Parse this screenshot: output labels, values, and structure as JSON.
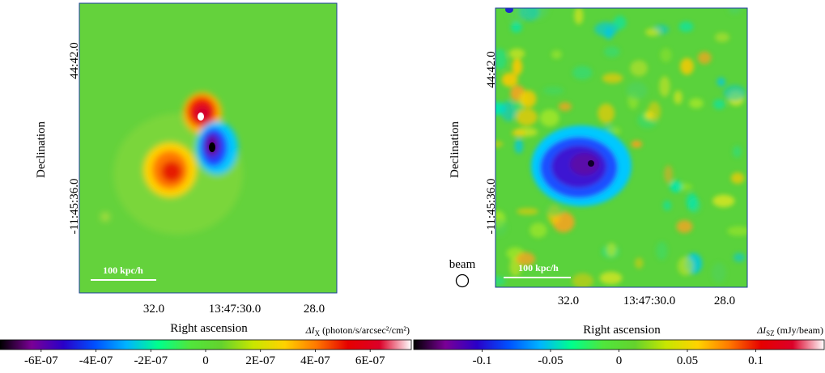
{
  "chart_data": [
    {
      "type": "heatmap",
      "panel": "left",
      "xlabel": "Right ascension",
      "ylabel": "Declination",
      "x_ticks": [
        "32.0",
        "13:47:30.0",
        "28.0"
      ],
      "y_ticks": [
        "44:42.0",
        "-11:45:36.0"
      ],
      "scalebar": "100 kpc/h",
      "colorbar": {
        "label_prefix": "ΔI",
        "label_sub": "X",
        "label_suffix": " (photon/s/arcsec²/cm²)",
        "ticks": [
          "-6E-07",
          "-4E-07",
          "-2E-07",
          "0",
          "2E-07",
          "4E-07",
          "6E-07"
        ],
        "range": [
          -7.5e-07,
          7.5e-07
        ]
      },
      "features": [
        {
          "sign": "positive",
          "level": 0.95,
          "desc": "lobe upper"
        },
        {
          "sign": "negative",
          "level": 0.95,
          "desc": "lobe lower right"
        },
        {
          "sign": "positive",
          "level": 0.8,
          "desc": "lobe left"
        }
      ]
    },
    {
      "type": "heatmap",
      "panel": "right",
      "xlabel": "Right ascension",
      "ylabel": "Declination",
      "x_ticks": [
        "32.0",
        "13:47:30.0",
        "28.0"
      ],
      "y_ticks": [
        "44:42.0",
        "-11:45:36.0"
      ],
      "scalebar": "100 kpc/h",
      "beam_label": "beam",
      "colorbar": {
        "label_prefix": "ΔI",
        "label_sub": "SZ",
        "label_suffix": " (mJy/beam)",
        "ticks": [
          "-0.1",
          "-0.05",
          "0",
          "0.05",
          "0.1"
        ],
        "range": [
          -0.15,
          0.15
        ]
      },
      "features": [
        {
          "sign": "negative",
          "level": 0.85,
          "desc": "central decrement"
        }
      ]
    }
  ],
  "colors": {
    "colormap": [
      "#000000",
      "#7a0096",
      "#2a00c8",
      "#0050ff",
      "#00b4ff",
      "#00ff8c",
      "#50e63c",
      "#64d22d",
      "#c8e600",
      "#ffd200",
      "#ff7800",
      "#e60000",
      "#dc0028",
      "#ffffff"
    ]
  }
}
